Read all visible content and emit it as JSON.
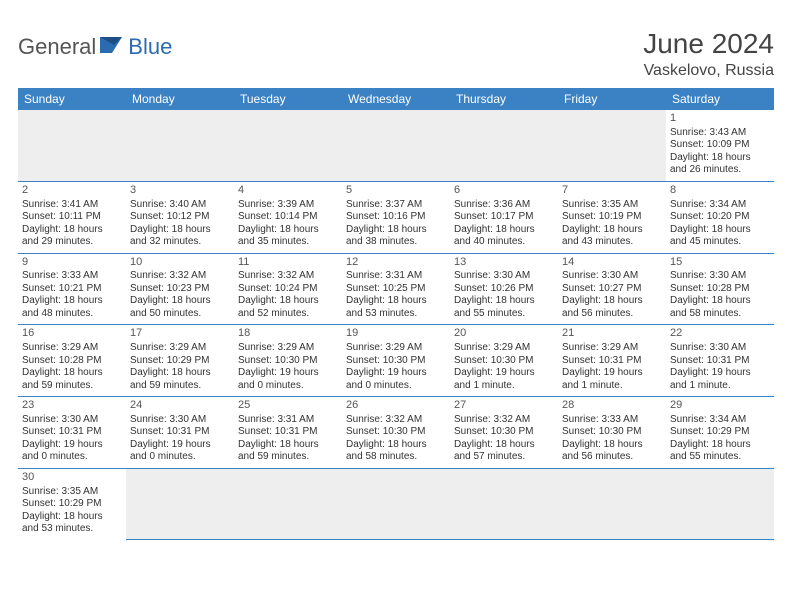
{
  "brand": {
    "part1": "General",
    "part2": "Blue"
  },
  "title": "June 2024",
  "location": "Vaskelovo, Russia",
  "colors": {
    "header_bg": "#3b82c4",
    "header_text": "#ffffff",
    "grid_line": "#3b82c4",
    "empty_bg": "#eeeeee",
    "text": "#333333",
    "brand_gray": "#555555",
    "brand_blue": "#2b6bb0"
  },
  "weekdays": [
    "Sunday",
    "Monday",
    "Tuesday",
    "Wednesday",
    "Thursday",
    "Friday",
    "Saturday"
  ],
  "weeks": [
    [
      null,
      null,
      null,
      null,
      null,
      null,
      {
        "n": "1",
        "sr": "Sunrise: 3:43 AM",
        "ss": "Sunset: 10:09 PM",
        "d1": "Daylight: 18 hours",
        "d2": "and 26 minutes."
      }
    ],
    [
      {
        "n": "2",
        "sr": "Sunrise: 3:41 AM",
        "ss": "Sunset: 10:11 PM",
        "d1": "Daylight: 18 hours",
        "d2": "and 29 minutes."
      },
      {
        "n": "3",
        "sr": "Sunrise: 3:40 AM",
        "ss": "Sunset: 10:12 PM",
        "d1": "Daylight: 18 hours",
        "d2": "and 32 minutes."
      },
      {
        "n": "4",
        "sr": "Sunrise: 3:39 AM",
        "ss": "Sunset: 10:14 PM",
        "d1": "Daylight: 18 hours",
        "d2": "and 35 minutes."
      },
      {
        "n": "5",
        "sr": "Sunrise: 3:37 AM",
        "ss": "Sunset: 10:16 PM",
        "d1": "Daylight: 18 hours",
        "d2": "and 38 minutes."
      },
      {
        "n": "6",
        "sr": "Sunrise: 3:36 AM",
        "ss": "Sunset: 10:17 PM",
        "d1": "Daylight: 18 hours",
        "d2": "and 40 minutes."
      },
      {
        "n": "7",
        "sr": "Sunrise: 3:35 AM",
        "ss": "Sunset: 10:19 PM",
        "d1": "Daylight: 18 hours",
        "d2": "and 43 minutes."
      },
      {
        "n": "8",
        "sr": "Sunrise: 3:34 AM",
        "ss": "Sunset: 10:20 PM",
        "d1": "Daylight: 18 hours",
        "d2": "and 45 minutes."
      }
    ],
    [
      {
        "n": "9",
        "sr": "Sunrise: 3:33 AM",
        "ss": "Sunset: 10:21 PM",
        "d1": "Daylight: 18 hours",
        "d2": "and 48 minutes."
      },
      {
        "n": "10",
        "sr": "Sunrise: 3:32 AM",
        "ss": "Sunset: 10:23 PM",
        "d1": "Daylight: 18 hours",
        "d2": "and 50 minutes."
      },
      {
        "n": "11",
        "sr": "Sunrise: 3:32 AM",
        "ss": "Sunset: 10:24 PM",
        "d1": "Daylight: 18 hours",
        "d2": "and 52 minutes."
      },
      {
        "n": "12",
        "sr": "Sunrise: 3:31 AM",
        "ss": "Sunset: 10:25 PM",
        "d1": "Daylight: 18 hours",
        "d2": "and 53 minutes."
      },
      {
        "n": "13",
        "sr": "Sunrise: 3:30 AM",
        "ss": "Sunset: 10:26 PM",
        "d1": "Daylight: 18 hours",
        "d2": "and 55 minutes."
      },
      {
        "n": "14",
        "sr": "Sunrise: 3:30 AM",
        "ss": "Sunset: 10:27 PM",
        "d1": "Daylight: 18 hours",
        "d2": "and 56 minutes."
      },
      {
        "n": "15",
        "sr": "Sunrise: 3:30 AM",
        "ss": "Sunset: 10:28 PM",
        "d1": "Daylight: 18 hours",
        "d2": "and 58 minutes."
      }
    ],
    [
      {
        "n": "16",
        "sr": "Sunrise: 3:29 AM",
        "ss": "Sunset: 10:28 PM",
        "d1": "Daylight: 18 hours",
        "d2": "and 59 minutes."
      },
      {
        "n": "17",
        "sr": "Sunrise: 3:29 AM",
        "ss": "Sunset: 10:29 PM",
        "d1": "Daylight: 18 hours",
        "d2": "and 59 minutes."
      },
      {
        "n": "18",
        "sr": "Sunrise: 3:29 AM",
        "ss": "Sunset: 10:30 PM",
        "d1": "Daylight: 19 hours",
        "d2": "and 0 minutes."
      },
      {
        "n": "19",
        "sr": "Sunrise: 3:29 AM",
        "ss": "Sunset: 10:30 PM",
        "d1": "Daylight: 19 hours",
        "d2": "and 0 minutes."
      },
      {
        "n": "20",
        "sr": "Sunrise: 3:29 AM",
        "ss": "Sunset: 10:30 PM",
        "d1": "Daylight: 19 hours",
        "d2": "and 1 minute."
      },
      {
        "n": "21",
        "sr": "Sunrise: 3:29 AM",
        "ss": "Sunset: 10:31 PM",
        "d1": "Daylight: 19 hours",
        "d2": "and 1 minute."
      },
      {
        "n": "22",
        "sr": "Sunrise: 3:30 AM",
        "ss": "Sunset: 10:31 PM",
        "d1": "Daylight: 19 hours",
        "d2": "and 1 minute."
      }
    ],
    [
      {
        "n": "23",
        "sr": "Sunrise: 3:30 AM",
        "ss": "Sunset: 10:31 PM",
        "d1": "Daylight: 19 hours",
        "d2": "and 0 minutes."
      },
      {
        "n": "24",
        "sr": "Sunrise: 3:30 AM",
        "ss": "Sunset: 10:31 PM",
        "d1": "Daylight: 19 hours",
        "d2": "and 0 minutes."
      },
      {
        "n": "25",
        "sr": "Sunrise: 3:31 AM",
        "ss": "Sunset: 10:31 PM",
        "d1": "Daylight: 18 hours",
        "d2": "and 59 minutes."
      },
      {
        "n": "26",
        "sr": "Sunrise: 3:32 AM",
        "ss": "Sunset: 10:30 PM",
        "d1": "Daylight: 18 hours",
        "d2": "and 58 minutes."
      },
      {
        "n": "27",
        "sr": "Sunrise: 3:32 AM",
        "ss": "Sunset: 10:30 PM",
        "d1": "Daylight: 18 hours",
        "d2": "and 57 minutes."
      },
      {
        "n": "28",
        "sr": "Sunrise: 3:33 AM",
        "ss": "Sunset: 10:30 PM",
        "d1": "Daylight: 18 hours",
        "d2": "and 56 minutes."
      },
      {
        "n": "29",
        "sr": "Sunrise: 3:34 AM",
        "ss": "Sunset: 10:29 PM",
        "d1": "Daylight: 18 hours",
        "d2": "and 55 minutes."
      }
    ],
    [
      {
        "n": "30",
        "sr": "Sunrise: 3:35 AM",
        "ss": "Sunset: 10:29 PM",
        "d1": "Daylight: 18 hours",
        "d2": "and 53 minutes."
      },
      null,
      null,
      null,
      null,
      null,
      null
    ]
  ]
}
